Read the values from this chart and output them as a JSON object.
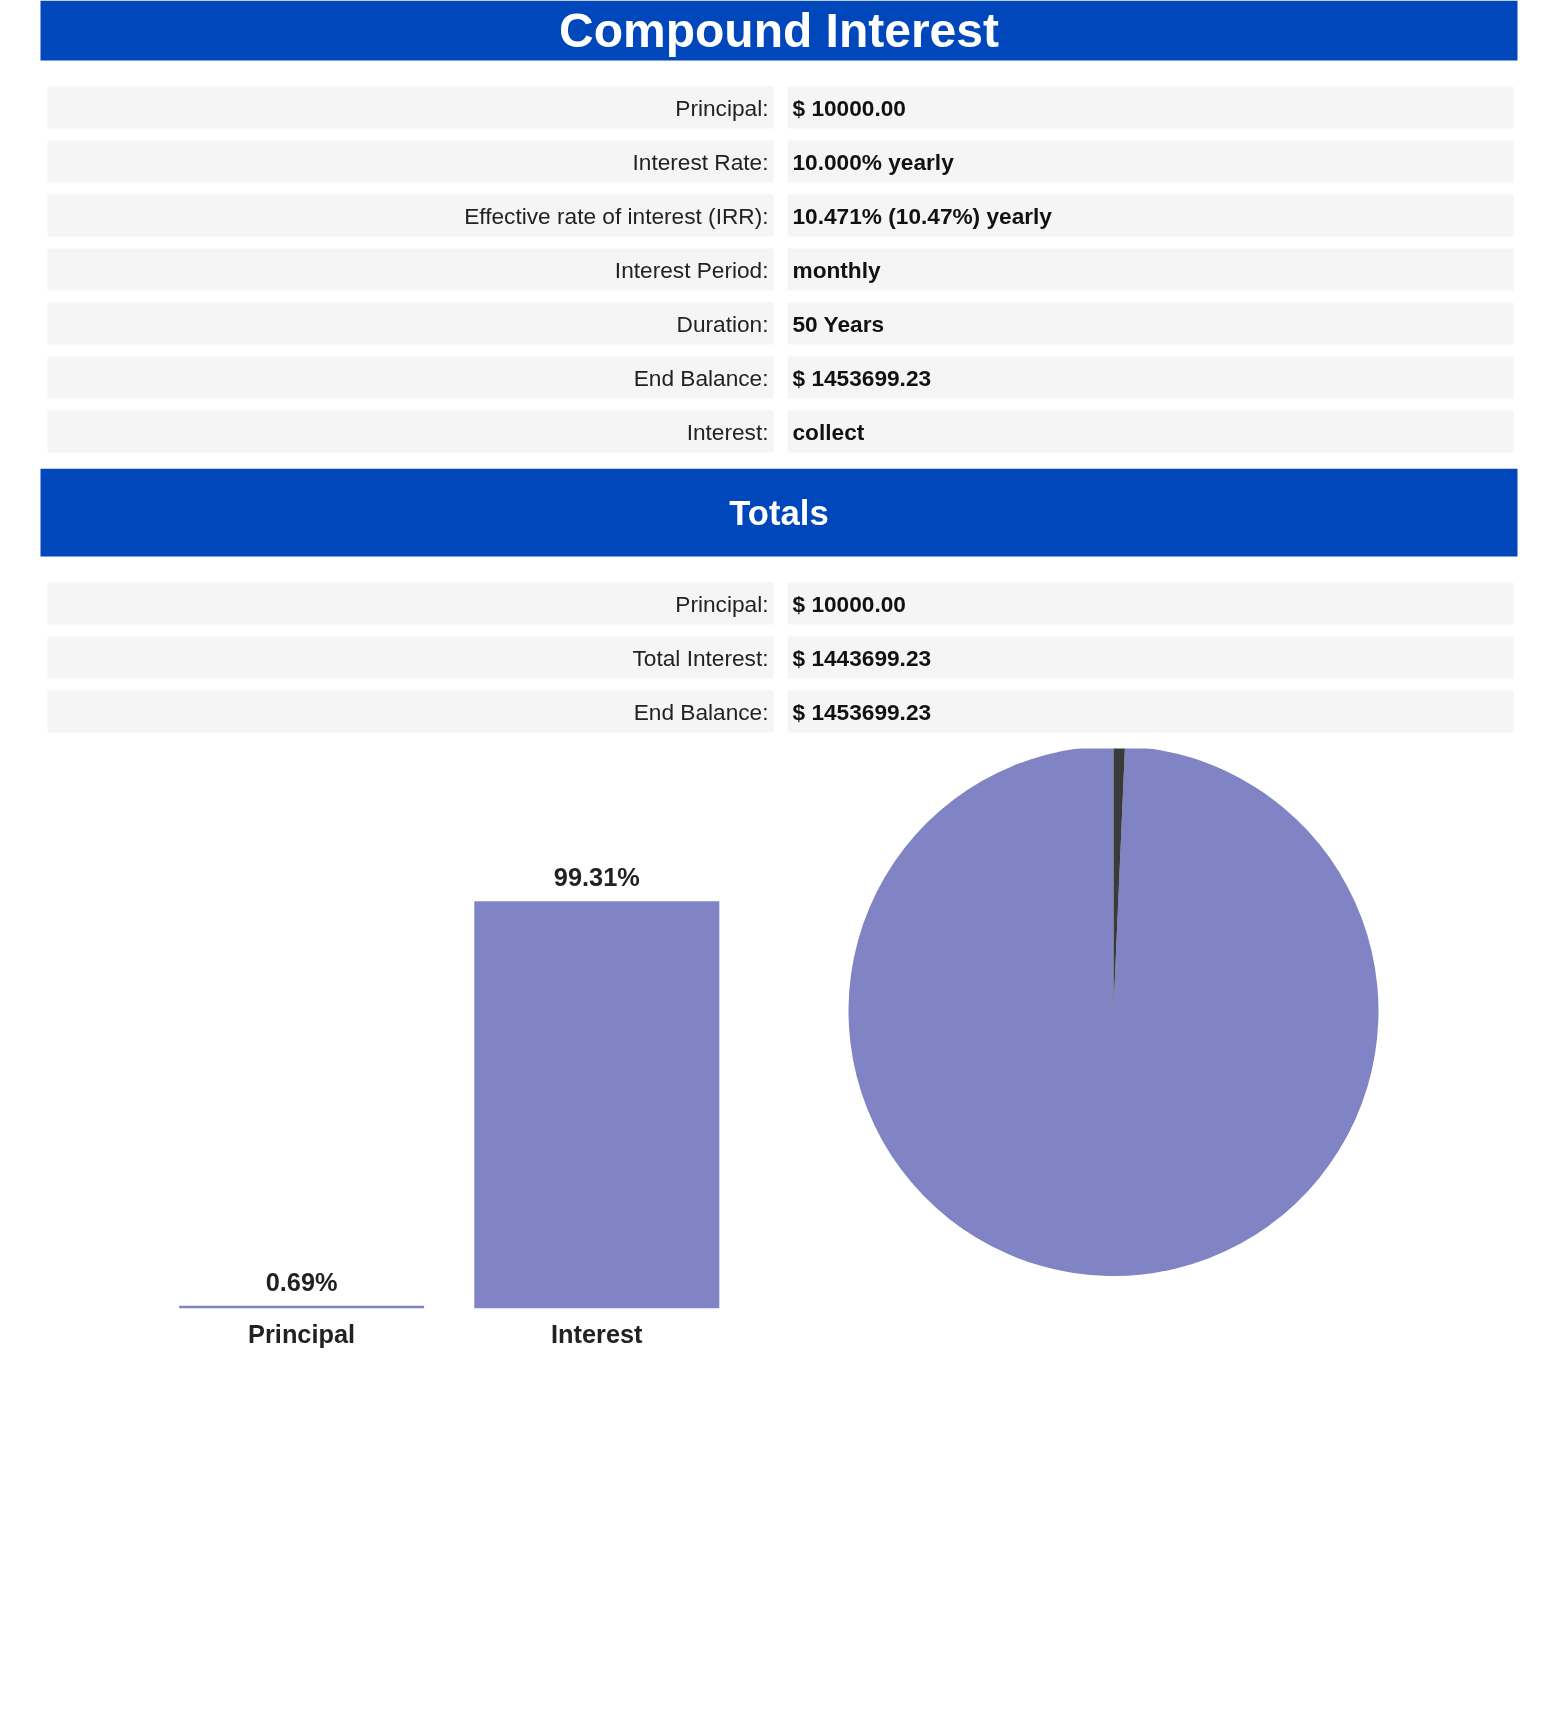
{
  "chart_data": [
    {
      "type": "other",
      "title": "Compound Interest",
      "annotations": [
        "Principal:",
        "$ 10000.00",
        "Interest Rate:",
        "10.000% yearly",
        "Effective rate of interest (IRR):",
        "10.471% (10.47%) yearly",
        "Interest Period:",
        "monthly",
        "Duration:",
        "50 Years",
        "End Balance:",
        "$ 1453699.23",
        "Interest:",
        "collect"
      ]
    },
    {
      "type": "other",
      "title": "Totals",
      "annotations": [
        "Principal:",
        "$ 10000.00",
        "Total Interest:",
        "$ 1443699.23",
        "End Balance:",
        "$ 1453699.23"
      ]
    },
    {
      "type": "bar",
      "categories": [
        "Principal",
        "Interest"
      ],
      "values": [
        0.69,
        99.31
      ],
      "value_labels": [
        "0.69%",
        "99.31%"
      ],
      "color": "#8084c4"
    },
    {
      "type": "pie",
      "categories": [
        null,
        null
      ],
      "values": [
        0.69,
        99.31
      ],
      "colors": [
        "#3a3a3a",
        "#8084c4"
      ]
    }
  ]
}
